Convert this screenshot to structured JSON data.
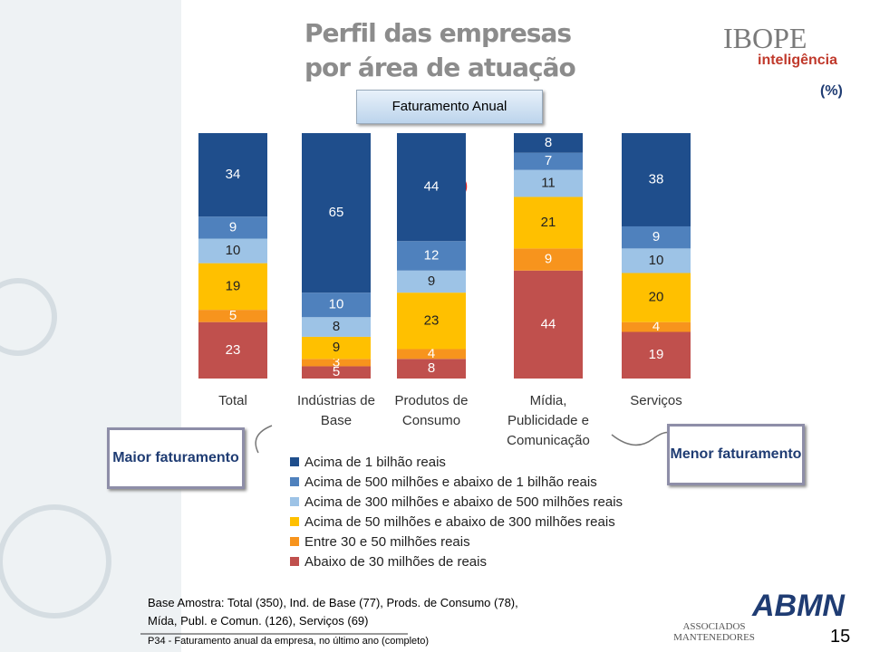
{
  "header": {
    "title_lines": [
      "Perfil das empresas",
      "por área de atuação"
    ],
    "subtitle": "Faturamento Anual",
    "unit": "(%)",
    "logo": "IBOPE",
    "logo_sub": "inteligência"
  },
  "chart_data": {
    "type": "stacked_bar",
    "categories": [
      "Total",
      "Indústrias de Base",
      "Produtos de Consumo",
      "Mídia, Publicidade e Comunicação",
      "Serviços"
    ],
    "ylim": [
      0,
      100
    ],
    "series": [
      {
        "name": "Acima de 1 bilhão reais",
        "color": "#1f4e8c",
        "values": [
          34,
          65,
          44,
          8,
          38
        ]
      },
      {
        "name": "Acima de 500 milhões e abaixo de 1 bilhão reais",
        "color": "#4f81bd",
        "values": [
          9,
          10,
          12,
          7,
          9
        ]
      },
      {
        "name": "Acima de 300 milhões e abaixo de 500 milhões reais",
        "color": "#9dc3e6",
        "values": [
          10,
          8,
          9,
          11,
          10
        ]
      },
      {
        "name": "Acima de 50 milhões e abaixo de 300 milhões reais",
        "color": "#ffc000",
        "values": [
          19,
          9,
          23,
          21,
          20
        ]
      },
      {
        "name": "Entre 30 e 50 milhões reais",
        "color": "#f7941d",
        "values": [
          5,
          3,
          4,
          9,
          4
        ]
      },
      {
        "name": "Abaixo de 30 milhões de reais",
        "color": "#c0504d",
        "values": [
          23,
          5,
          8,
          44,
          19
        ]
      }
    ]
  },
  "annotations": {
    "left": "Maior faturamento",
    "right": "Menor faturamento"
  },
  "footer": {
    "base": "Base Amostra: Total (350), Ind. de Base (77), Prods. de Consumo (78), Mída, Publ. e Comun. (126), Serviços (69)",
    "note": "P34 - Faturamento anual da empresa, no último ano (completo)",
    "page": "15",
    "assoc": "ASSOCIADOS MANTENEDORES",
    "abmn": "ABMN"
  }
}
